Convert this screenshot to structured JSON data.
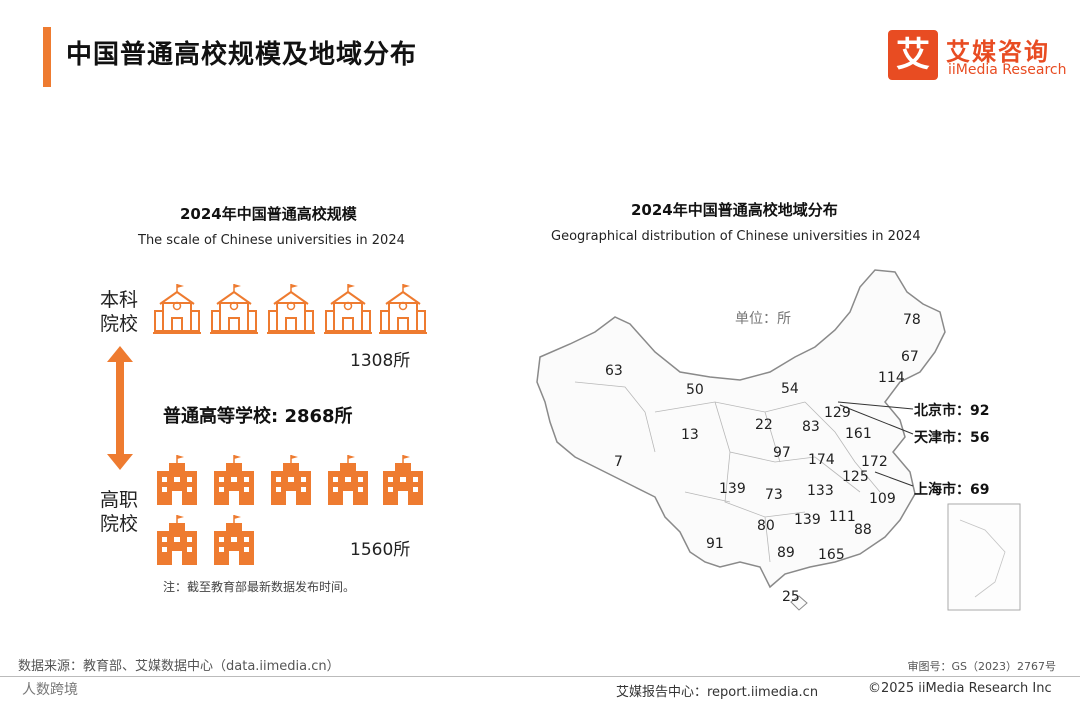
{
  "header": {
    "title": "中国普通高校规模及地域分布",
    "logo_cn": "艾媒咨询",
    "logo_en": "iiMedia Research",
    "logo_mark": "艾"
  },
  "left": {
    "title": "2024年中国普通高校规模",
    "subtitle": "The scale of Chinese universities in 2024",
    "undergrad_label": "本科院校",
    "undergrad_count": "1308所",
    "total": "普通高等学校: 2868所",
    "vocational_label": "高职院校",
    "vocational_count": "1560所",
    "note": "注：截至教育部最新数据发布时间。"
  },
  "right": {
    "title": "2024年中国普通高校地域分布",
    "subtitle": "Geographical distribution of Chinese universities in 2024",
    "unit": "单位：所",
    "provinces": [
      "78",
      "67",
      "114",
      "63",
      "50",
      "54",
      "129",
      "22",
      "83",
      "161",
      "13",
      "97",
      "174",
      "172",
      "7",
      "125",
      "139",
      "73",
      "133",
      "109",
      "80",
      "139",
      "111",
      "88",
      "91",
      "89",
      "165",
      "25"
    ],
    "cities": [
      {
        "name": "北京市：92"
      },
      {
        "name": "天津市：56"
      },
      {
        "name": "上海市：69"
      }
    ]
  },
  "footer": {
    "source": "数据来源：教育部、艾媒数据中心（data.iimedia.cn）",
    "map_no": "审图号：GS（2023）2767号",
    "left_mark": "人数跨境",
    "report": "艾媒报告中心：report.iimedia.cn",
    "copyright": "©2025  iiMedia Research  Inc"
  },
  "colors": {
    "accent": "#ee7b30",
    "brand": "#e84c22"
  }
}
